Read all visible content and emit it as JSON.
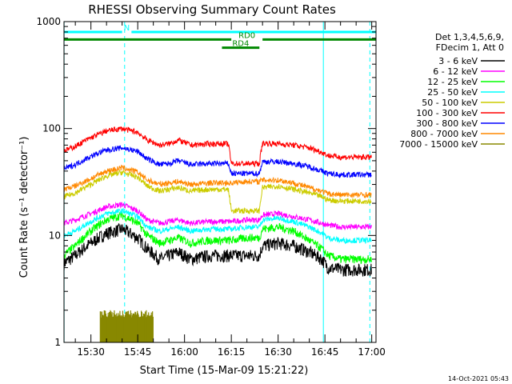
{
  "chart_data": {
    "type": "line",
    "title": "RHESSI Observing Summary Count Rates",
    "xlabel": "Start Time (15-Mar-09 15:21:22)",
    "ylabel": "Count Rate (s⁻¹ detector⁻¹)",
    "y_scale": "log",
    "ylim": [
      1,
      1000
    ],
    "y_ticks": [
      1,
      10,
      100,
      1000
    ],
    "y_tick_labels": [
      "1",
      "10",
      "100",
      "1000"
    ],
    "xlim_minutes": [
      21.37,
      121.37
    ],
    "x_ticks_minutes": [
      30,
      45,
      60,
      75,
      90,
      105,
      120
    ],
    "x_tick_labels": [
      "15:30",
      "15:45",
      "16:00",
      "16:15",
      "16:30",
      "16:45",
      "17:00"
    ],
    "legend": {
      "placement": "right",
      "header": [
        "Det 1,3,4,5,6,9,",
        "FDecim 1, Att 0"
      ],
      "entries": [
        {
          "label": "3 - 6 keV",
          "color": "#000000"
        },
        {
          "label": "6 - 12 keV",
          "color": "#ff00ff"
        },
        {
          "label": "12 - 25 keV",
          "color": "#00ff00"
        },
        {
          "label": "25 - 50 keV",
          "color": "#00ffff"
        },
        {
          "label": "50 - 100 keV",
          "color": "#cccc00"
        },
        {
          "label": "100 - 300 keV",
          "color": "#ff0000"
        },
        {
          "label": "300 - 800 keV",
          "color": "#0000ff"
        },
        {
          "label": "800 - 7000 keV",
          "color": "#ff8800"
        },
        {
          "label": "7000 - 15000 keV",
          "color": "#888800"
        }
      ]
    },
    "series": [
      {
        "name": "3 - 6 keV",
        "color": "#000000",
        "x": [
          21.4,
          25,
          30,
          35,
          40,
          45,
          48,
          52,
          55,
          58,
          62,
          68,
          72,
          74,
          75,
          80,
          84,
          85,
          90,
          95,
          100,
          104,
          106,
          110,
          115,
          120
        ],
        "y": [
          5.5,
          6.5,
          8.5,
          10.5,
          11.5,
          9.5,
          7.5,
          6,
          6.5,
          7,
          6,
          6.5,
          6.5,
          6.5,
          6.5,
          6.5,
          6.5,
          8,
          8.5,
          8,
          7,
          6,
          5,
          4.8,
          4.8,
          4.8
        ]
      },
      {
        "name": "6 - 12 keV",
        "color": "#ff00ff",
        "x": [
          21.4,
          25,
          30,
          35,
          40,
          45,
          48,
          52,
          55,
          58,
          62,
          68,
          72,
          74,
          75,
          80,
          84,
          85,
          90,
          95,
          100,
          104,
          106,
          110,
          115,
          120
        ],
        "y": [
          13,
          14,
          16,
          18.5,
          19.5,
          17,
          14,
          13,
          13.5,
          14,
          13,
          13.5,
          13.5,
          13.5,
          13.5,
          14,
          14,
          15.5,
          16,
          15,
          14,
          13,
          12.5,
          12,
          12,
          12
        ]
      },
      {
        "name": "12 - 25 keV",
        "color": "#00ff00",
        "x": [
          21.4,
          25,
          30,
          35,
          40,
          45,
          48,
          52,
          55,
          58,
          62,
          68,
          72,
          74,
          75,
          80,
          84,
          85,
          90,
          95,
          100,
          104,
          106,
          110,
          115,
          120
        ],
        "y": [
          6.5,
          8,
          11,
          14,
          15.5,
          13,
          10,
          8.5,
          9,
          9.5,
          8.5,
          9,
          9,
          9,
          9,
          9.5,
          9.5,
          11.5,
          12,
          11,
          9,
          7.5,
          6.5,
          6,
          6,
          6
        ]
      },
      {
        "name": "25 - 50 keV",
        "color": "#00ffff",
        "x": [
          21.4,
          25,
          30,
          35,
          40,
          45,
          48,
          52,
          55,
          58,
          62,
          68,
          72,
          74,
          75,
          80,
          84,
          85,
          90,
          95,
          100,
          104,
          106,
          110,
          115,
          120
        ],
        "y": [
          10,
          11,
          13.5,
          16,
          17,
          15,
          12,
          11,
          11.5,
          12,
          11,
          11.5,
          11.5,
          11.5,
          11.5,
          12,
          12,
          14,
          14.5,
          13.5,
          12,
          10.5,
          9.5,
          9,
          9,
          9
        ]
      },
      {
        "name": "50 - 100 keV",
        "color": "#cccc00",
        "x": [
          21.4,
          25,
          30,
          35,
          40,
          45,
          48,
          52,
          55,
          58,
          62,
          68,
          72,
          74,
          75,
          80,
          84,
          85,
          90,
          95,
          100,
          104,
          106,
          110,
          115,
          120
        ],
        "y": [
          23,
          25,
          30,
          36,
          39,
          35,
          29,
          26,
          27,
          28,
          26,
          27,
          27,
          27,
          17,
          17,
          17,
          28,
          29,
          27,
          25,
          23,
          21.5,
          21,
          21,
          21
        ]
      },
      {
        "name": "100 - 300 keV",
        "color": "#ff0000",
        "x": [
          21.4,
          25,
          30,
          35,
          40,
          45,
          48,
          52,
          55,
          58,
          62,
          68,
          72,
          74,
          75,
          80,
          84,
          85,
          90,
          95,
          100,
          104,
          106,
          110,
          115,
          120
        ],
        "y": [
          62,
          68,
          82,
          95,
          100,
          92,
          78,
          70,
          72,
          78,
          70,
          72,
          72,
          72,
          47,
          47,
          47,
          73,
          72,
          70,
          66,
          60,
          56,
          54,
          54,
          54
        ]
      },
      {
        "name": "300 - 800 keV",
        "color": "#0000ff",
        "x": [
          21.4,
          25,
          30,
          35,
          40,
          45,
          48,
          52,
          55,
          58,
          62,
          68,
          72,
          74,
          75,
          80,
          84,
          85,
          90,
          95,
          100,
          104,
          106,
          110,
          115,
          120
        ],
        "y": [
          42,
          46,
          55,
          63,
          66,
          61,
          52,
          46,
          47,
          50,
          46,
          47,
          47,
          47,
          38,
          38,
          38,
          49,
          49,
          47,
          44,
          40,
          38,
          37,
          37,
          37
        ]
      },
      {
        "name": "800 - 7000 keV",
        "color": "#ff8800",
        "x": [
          21.4,
          25,
          30,
          35,
          40,
          45,
          48,
          52,
          55,
          58,
          62,
          68,
          72,
          74,
          75,
          80,
          84,
          85,
          90,
          95,
          100,
          104,
          106,
          110,
          115,
          120
        ],
        "y": [
          27,
          29,
          34,
          40,
          43,
          39,
          33,
          30,
          31,
          32,
          30,
          31,
          31,
          31,
          31,
          32,
          32,
          33,
          33,
          31,
          28,
          26,
          24.5,
          24,
          24,
          24
        ]
      },
      {
        "name": "7000 - 15000 keV",
        "color": "#888800",
        "x": [
          33,
          36,
          40,
          44,
          48,
          50
        ],
        "y": [
          1.9,
          1.9,
          1.9,
          1.9,
          1.9,
          1.9
        ]
      }
    ],
    "bars": [
      {
        "label": "N",
        "color": "#00ffff",
        "y": 800,
        "segments": [
          [
            21.37,
            40
          ],
          [
            43,
            121.37
          ]
        ]
      },
      {
        "label": "RD0",
        "color": "#008800",
        "y": 680,
        "segments": [
          [
            21.37,
            75
          ],
          [
            85,
            121.37
          ]
        ]
      },
      {
        "label": "RD4",
        "color": "#008800",
        "y": 570,
        "segments": [
          [
            72,
            84
          ]
        ]
      }
    ],
    "vlines": [
      {
        "x": 21.4,
        "style": "solid",
        "color": "#00ffff"
      },
      {
        "x": 40.8,
        "style": "dashed",
        "color": "#00ffff"
      },
      {
        "x": 104.5,
        "style": "solid",
        "color": "#00ffff"
      },
      {
        "x": 119.4,
        "style": "dashed",
        "color": "#00ffff"
      }
    ],
    "footer": "14-Oct-2021 05:43"
  }
}
